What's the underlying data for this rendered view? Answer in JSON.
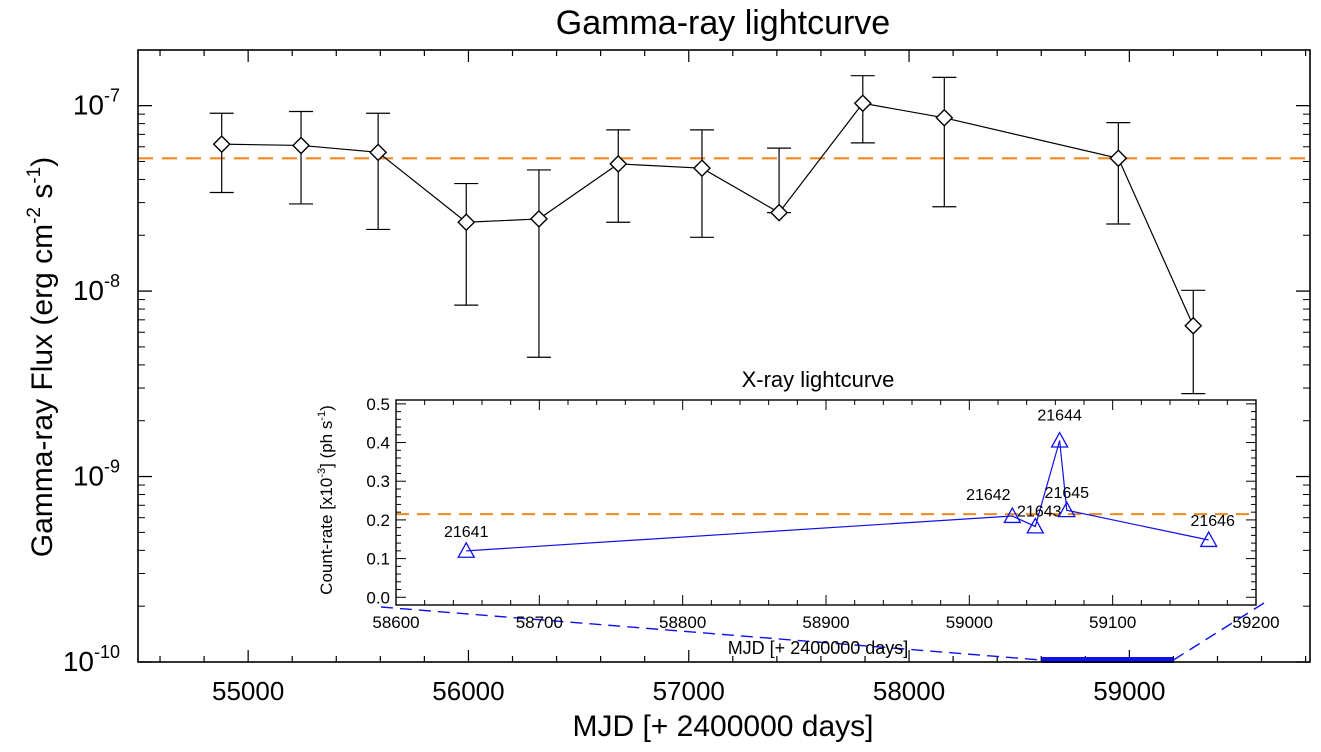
{
  "chart_data": [
    {
      "type": "scatter",
      "title": "Gamma-ray lightcurve",
      "xlabel": "MJD [+ 2400000 days]",
      "ylabel_main": "Gamma-ray Flux (erg cm",
      "ylabel_sup1": "-2",
      "ylabel_mid": " s",
      "ylabel_sup2": "-1",
      "ylabel_end": ")",
      "yscale": "log",
      "xlim": [
        54500,
        59820
      ],
      "ylim_exp": [
        -10,
        -6.7
      ],
      "xticks": [
        55000,
        56000,
        57000,
        58000,
        59000
      ],
      "xtick_labels": [
        "55000",
        "56000",
        "57000",
        "58000",
        "59000"
      ],
      "yticks_exp": [
        -10,
        -9,
        -8,
        -7
      ],
      "ytick_base": "10",
      "ytick_exps": [
        "-10",
        "-9",
        "-8",
        "-7"
      ],
      "reference_line": 5.2e-08,
      "series": [
        {
          "name": "Gamma-ray flux",
          "marker": "diamond",
          "x": [
            54880,
            55240,
            55590,
            55990,
            56320,
            56680,
            57060,
            57410,
            57790,
            58160,
            58950,
            59290
          ],
          "y": [
            6.2e-08,
            6.1e-08,
            5.6e-08,
            2.35e-08,
            2.45e-08,
            4.85e-08,
            4.6e-08,
            2.65e-08,
            1.03e-07,
            8.6e-08,
            5.2e-08,
            6.5e-09
          ],
          "y_low": [
            3.4e-08,
            2.95e-08,
            2.15e-08,
            8.4e-09,
            4.4e-09,
            2.35e-08,
            1.95e-08,
            2.65e-08,
            6.3e-08,
            2.85e-08,
            2.3e-08,
            2.8e-09
          ],
          "y_high": [
            9.1e-08,
            9.3e-08,
            9.1e-08,
            3.8e-08,
            4.5e-08,
            7.4e-08,
            7.4e-08,
            5.9e-08,
            1.45e-07,
            1.42e-07,
            8.1e-08,
            1.01e-08
          ]
        }
      ],
      "x_range_highlight": [
        58600,
        59200
      ]
    },
    {
      "type": "line",
      "title": "X-ray lightcurve",
      "xlabel": "MJD [+ 2400000 days]",
      "ylabel_pre": "Count-rate [x10",
      "ylabel_sup1": "-3",
      "ylabel_mid": "] (ph s",
      "ylabel_sup2": "-1",
      "ylabel_end": ")",
      "xlim": [
        58600,
        59200
      ],
      "ylim": [
        -0.02,
        0.51
      ],
      "xticks": [
        58600,
        58700,
        58800,
        58900,
        59000,
        59100,
        59200
      ],
      "xtick_labels": [
        "58600",
        "58700",
        "58800",
        "58900",
        "59000",
        "59100",
        "59200"
      ],
      "yticks": [
        0.0,
        0.1,
        0.2,
        0.3,
        0.4,
        0.5
      ],
      "ytick_labels": [
        "0.0",
        "0.1",
        "0.2",
        "0.3",
        "0.4",
        "0.5"
      ],
      "reference_line": 0.215,
      "series": [
        {
          "name": "X-ray count-rate",
          "marker": "triangle",
          "x": [
            58649,
            59030,
            59046,
            59063,
            59068,
            59167
          ],
          "y": [
            0.12,
            0.21,
            0.183,
            0.405,
            0.225,
            0.148
          ],
          "labels": [
            "21641",
            "21642",
            "21643",
            "21644",
            "21645",
            "21646"
          ]
        }
      ]
    }
  ],
  "colors": {
    "main_series": "#000000",
    "reference": "#ee8a1f",
    "xray_series": "#1010ee"
  }
}
